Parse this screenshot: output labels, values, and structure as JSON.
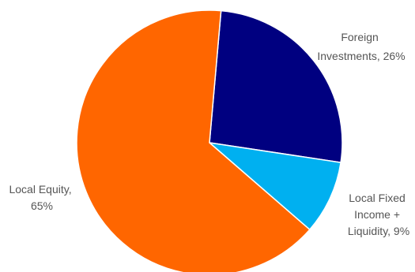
{
  "chart_data": {
    "type": "pie",
    "slices": [
      {
        "label_lines": [
          "Foreign",
          "Investments, 26%"
        ],
        "name": "Foreign Investments",
        "value": 26,
        "color": "#000080"
      },
      {
        "label_lines": [
          "Local Fixed",
          "Income +",
          "Liquidity, 9%"
        ],
        "name": "Local Fixed Income + Liquidity",
        "value": 9,
        "color": "#00B0F0"
      },
      {
        "label_lines": [
          "Local Equity,",
          "65%"
        ],
        "name": "Local Equity",
        "value": 65,
        "color": "#FF6600"
      }
    ]
  }
}
